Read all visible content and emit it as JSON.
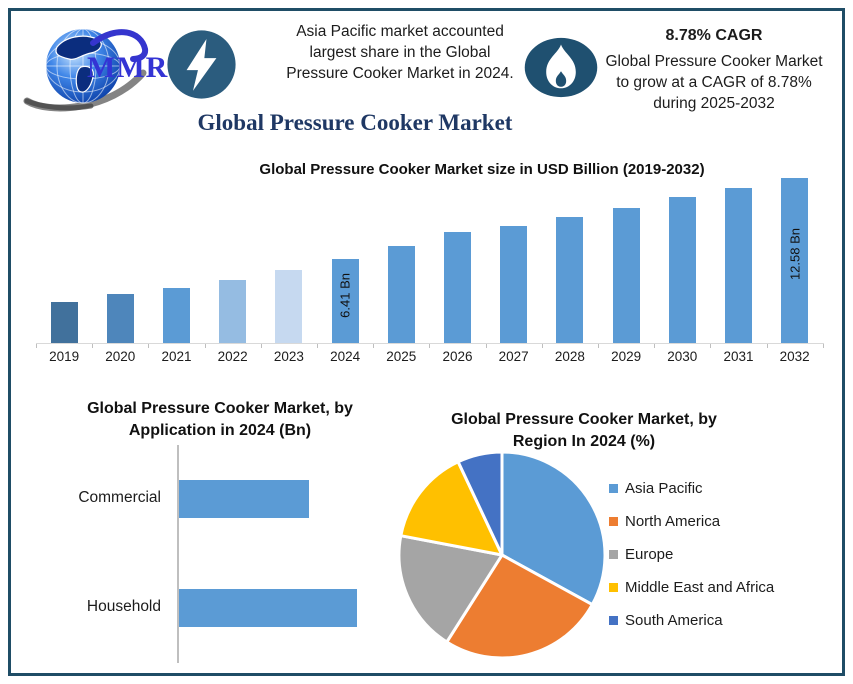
{
  "page_title": "Global Pressure Cooker Market",
  "header": {
    "logo_text": "MMR",
    "left_callout": {
      "icon": "lightning-icon",
      "text": "Asia Pacific market accounted largest share in the Global Pressure Cooker Market in 2024."
    },
    "right_callout": {
      "icon": "flame-icon",
      "title": "8.78% CAGR",
      "text": "Global Pressure Cooker Market to grow at a CAGR of 8.78% during 2025-2032"
    }
  },
  "colors": {
    "frame_border": "#1F4D66",
    "icon_circle_blue": "#2B5C7E",
    "icon_ellipse_blue": "#1F5070",
    "title_navy": "#1F3864",
    "logo_text_blue": "#3434D4",
    "axis_gray": "#BFBFBF",
    "primary_bar_blue": "#5B9BD5"
  },
  "chart_data": [
    {
      "type": "bar",
      "title": "Global Pressure Cooker Market size in USD Billion (2019-2032)",
      "categories": [
        "2019",
        "2020",
        "2021",
        "2022",
        "2023",
        "2024",
        "2025",
        "2026",
        "2027",
        "2028",
        "2029",
        "2030",
        "2031",
        "2032"
      ],
      "values": [
        3.1,
        3.7,
        4.2,
        4.8,
        5.6,
        6.41,
        7.4,
        8.5,
        8.9,
        9.6,
        10.3,
        11.1,
        11.8,
        12.58
      ],
      "unit": "USD Billion",
      "ylim": [
        0,
        12.58
      ],
      "grid": false,
      "bar_colors": [
        "#41719C",
        "#4E86BB",
        "#5B9BD5",
        "#95BCE2",
        "#C6D9F0",
        "#5B9BD5",
        "#5B9BD5",
        "#5B9BD5",
        "#5B9BD5",
        "#5B9BD5",
        "#5B9BD5",
        "#5B9BD5",
        "#5B9BD5",
        "#5B9BD5"
      ],
      "point_labels": {
        "2024": "6.41 Bn",
        "2032": "12.58 Bn"
      }
    },
    {
      "type": "bar",
      "orientation": "horizontal",
      "title": "Global Pressure Cooker Market, by Application in 2024 (Bn)",
      "categories": [
        "Commercial",
        "Household"
      ],
      "values": [
        2.7,
        3.7
      ],
      "unit": "Bn",
      "bar_color": "#5B9BD5",
      "grid": false
    },
    {
      "type": "pie",
      "title": "Global Pressure Cooker Market, by Region In 2024 (%)",
      "labels": [
        "Asia Pacific",
        "North America",
        "Europe",
        "Middle East and Africa",
        "South America"
      ],
      "values": [
        33,
        26,
        19,
        15,
        7
      ],
      "colors": [
        "#5B9BD5",
        "#ED7D31",
        "#A5A5A5",
        "#FFC000",
        "#4472C4"
      ],
      "legend_position": "right"
    }
  ]
}
